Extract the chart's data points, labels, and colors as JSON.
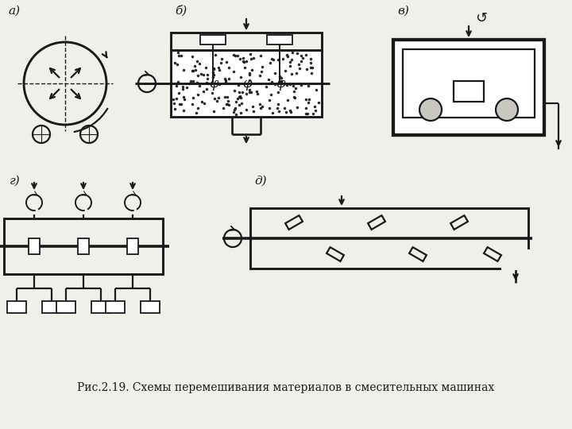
{
  "title": "Рис.2.19. Схемы перемешивания материалов в смесительных машинах",
  "bg_color": "#f0f0eb",
  "line_color": "#1a1a1a",
  "labels": [
    "а)",
    "б)",
    "в)",
    "г)",
    "д)"
  ]
}
